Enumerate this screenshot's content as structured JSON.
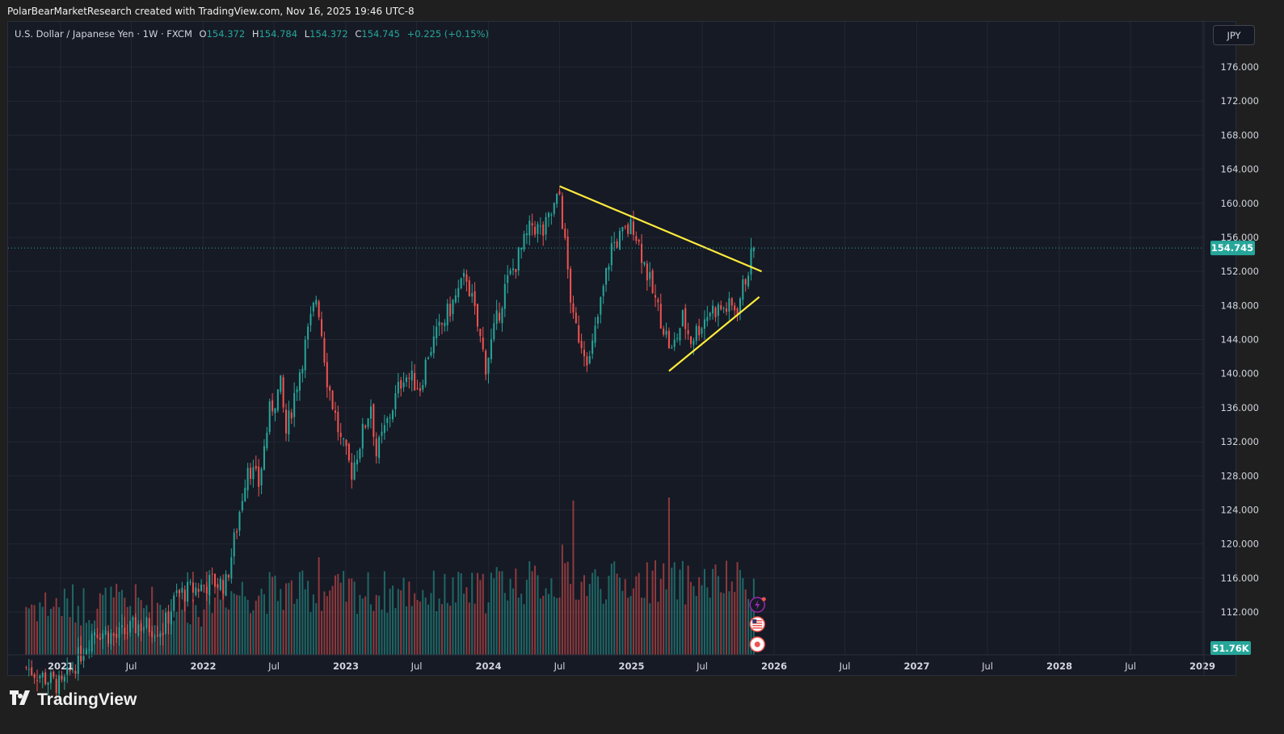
{
  "header": {
    "caption": "PolarBearMarketResearch created with TradingView.com, Nov 16, 2025 19:46 UTC-8"
  },
  "legend": {
    "symbol": "U.S. Dollar / Japanese Yen · 1W · FXCM",
    "o_label": "O",
    "o_value": "154.372",
    "h_label": "H",
    "h_value": "154.784",
    "l_label": "L",
    "l_value": "154.372",
    "c_label": "C",
    "c_value": "154.745",
    "change": "+0.225 (+0.15%)"
  },
  "currency_button": "JPY",
  "footer": {
    "brand": "TradingView"
  },
  "colors": {
    "up": "#26a69a",
    "down": "#ef5350",
    "trendline": "#ffeb3b",
    "background": "#161a25",
    "grid": "#232733",
    "axis_text": "#d1d4dc"
  },
  "chart_data": {
    "type": "candlestick",
    "symbol": "USDJPY",
    "timeframe": "1W",
    "ylim": [
      108.5,
      179.5
    ],
    "y_ticks": [
      112,
      116,
      120,
      124,
      128,
      132,
      136,
      140,
      144,
      148,
      152,
      156,
      160,
      164,
      168,
      172,
      176
    ],
    "y_tick_labels": [
      "112.000",
      "116.000",
      "120.000",
      "124.000",
      "128.000",
      "132.000",
      "136.000",
      "140.000",
      "144.000",
      "148.000",
      "152.000",
      "156.000",
      "160.000",
      "164.000",
      "168.000",
      "172.000",
      "176.000"
    ],
    "x_ticks": [
      {
        "label": "2021",
        "date": "2021-01-01",
        "bold": true
      },
      {
        "label": "Jul",
        "date": "2021-07-01",
        "bold": false
      },
      {
        "label": "2022",
        "date": "2022-01-01",
        "bold": true
      },
      {
        "label": "Jul",
        "date": "2022-07-01",
        "bold": false
      },
      {
        "label": "2023",
        "date": "2023-01-01",
        "bold": true
      },
      {
        "label": "Jul",
        "date": "2023-07-01",
        "bold": false
      },
      {
        "label": "2024",
        "date": "2024-01-01",
        "bold": true
      },
      {
        "label": "Jul",
        "date": "2024-07-01",
        "bold": false
      },
      {
        "label": "2025",
        "date": "2025-01-01",
        "bold": true
      },
      {
        "label": "Jul",
        "date": "2025-07-01",
        "bold": false
      },
      {
        "label": "2026",
        "date": "2026-01-01",
        "bold": true
      },
      {
        "label": "Jul",
        "date": "2026-07-01",
        "bold": false
      },
      {
        "label": "2027",
        "date": "2027-01-01",
        "bold": true
      },
      {
        "label": "Jul",
        "date": "2027-07-01",
        "bold": false
      },
      {
        "label": "2028",
        "date": "2028-01-01",
        "bold": true
      },
      {
        "label": "Jul",
        "date": "2028-07-01",
        "bold": false
      },
      {
        "label": "2029",
        "date": "2029-01-01",
        "bold": true
      }
    ],
    "x_range": [
      "2020-10-05",
      "2029-01-01"
    ],
    "last_price": 154.745,
    "last_price_label": "154.745",
    "volume_label": "51.76K",
    "close_path": [
      [
        "2020-10-05",
        105.5
      ],
      [
        "2021-01-04",
        103.2
      ],
      [
        "2021-03-29",
        110.0
      ],
      [
        "2021-05-24",
        109.0
      ],
      [
        "2021-07-19",
        110.5
      ],
      [
        "2021-09-20",
        110.0
      ],
      [
        "2021-10-25",
        114.0
      ],
      [
        "2021-12-27",
        115.0
      ],
      [
        "2022-01-24",
        115.5
      ],
      [
        "2022-02-28",
        115.3
      ],
      [
        "2022-03-28",
        122.0
      ],
      [
        "2022-04-25",
        129.5
      ],
      [
        "2022-05-23",
        127.0
      ],
      [
        "2022-06-20",
        135.5
      ],
      [
        "2022-07-18",
        138.5
      ],
      [
        "2022-08-01",
        133.0
      ],
      [
        "2022-08-29",
        139.0
      ],
      [
        "2022-10-17",
        149.0
      ],
      [
        "2022-10-24",
        147.5
      ],
      [
        "2022-11-14",
        139.5
      ],
      [
        "2022-12-19",
        132.0
      ],
      [
        "2023-01-16",
        128.5
      ],
      [
        "2023-03-06",
        136.5
      ],
      [
        "2023-03-20",
        130.5
      ],
      [
        "2023-05-29",
        140.0
      ],
      [
        "2023-07-10",
        138.5
      ],
      [
        "2023-07-31",
        142.5
      ],
      [
        "2023-11-06",
        151.5
      ],
      [
        "2023-12-25",
        141.0
      ],
      [
        "2024-02-12",
        150.0
      ],
      [
        "2024-04-22",
        157.5
      ],
      [
        "2024-05-20",
        156.5
      ],
      [
        "2024-07-01",
        161.0
      ],
      [
        "2024-08-05",
        146.0
      ],
      [
        "2024-09-16",
        141.5
      ],
      [
        "2024-11-11",
        155.0
      ],
      [
        "2025-01-06",
        157.5
      ],
      [
        "2025-02-24",
        149.5
      ],
      [
        "2025-04-14",
        142.5
      ],
      [
        "2025-05-12",
        146.5
      ],
      [
        "2025-06-02",
        144.0
      ],
      [
        "2025-07-21",
        147.5
      ],
      [
        "2025-09-29",
        147.8
      ],
      [
        "2025-11-10",
        154.7
      ]
    ],
    "volume_scale": [
      0,
      1000
    ],
    "trendlines": [
      {
        "name": "upper",
        "from": [
          "2024-07-01",
          162.0
        ],
        "to": [
          "2025-11-30",
          152.0
        ]
      },
      {
        "name": "lower",
        "from": [
          "2025-04-07",
          140.3
        ],
        "to": [
          "2025-11-24",
          149.0
        ]
      }
    ],
    "event_markers": [
      "lightning-icon",
      "us-flag-icon",
      "japan-flag-icon"
    ],
    "grid": true
  }
}
